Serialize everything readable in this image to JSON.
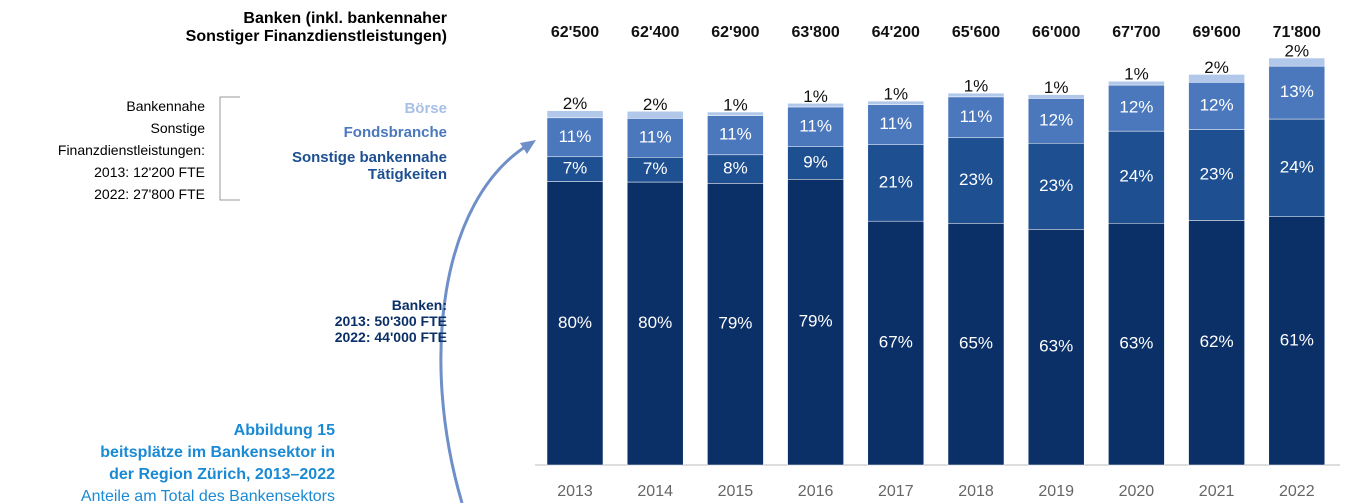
{
  "chart_data": {
    "type": "stacked-bar",
    "title": [
      "Banken (inkl. bankennaher",
      "Sonstiger Finanzdienstleistungen)"
    ],
    "categories": [
      "2013",
      "2014",
      "2015",
      "2016",
      "2017",
      "2018",
      "2019",
      "2020",
      "2021",
      "2022"
    ],
    "totals": {
      "values": [
        62500,
        62400,
        62900,
        63800,
        64200,
        65600,
        66000,
        67700,
        69600,
        71800
      ],
      "value_labels": [
        "62'500",
        "62'400",
        "62'900",
        "63'800",
        "64'200",
        "65'600",
        "66'000",
        "67'700",
        "69'600",
        "71'800"
      ]
    },
    "series": [
      {
        "name": "Banken",
        "color": "#0b3068",
        "values": [
          80,
          80,
          79,
          79,
          67,
          65,
          63,
          63,
          62,
          61
        ],
        "value_labels": [
          "80%",
          "80%",
          "79%",
          "79%",
          "67%",
          "65%",
          "63%",
          "63%",
          "62%",
          "61%"
        ]
      },
      {
        "name": "Sonstige bankennahe Tätigkeiten",
        "color": "#1d4f91",
        "values": [
          7,
          7,
          8,
          9,
          21,
          23,
          23,
          24,
          23,
          24
        ],
        "value_labels": [
          "7%",
          "7%",
          "8%",
          "9%",
          "21%",
          "23%",
          "23%",
          "24%",
          "23%",
          "24%"
        ]
      },
      {
        "name": "Fondsbranche",
        "color": "#4b78bd",
        "values": [
          11,
          11,
          11,
          11,
          11,
          11,
          12,
          12,
          12,
          13
        ],
        "value_labels": [
          "11%",
          "11%",
          "11%",
          "11%",
          "11%",
          "11%",
          "12%",
          "12%",
          "12%",
          "13%"
        ]
      },
      {
        "name": "Börse",
        "color": "#b1c8ea",
        "values": [
          2,
          2,
          1,
          1,
          1,
          1,
          1,
          1,
          2,
          2
        ],
        "value_labels": [
          "2%",
          "2%",
          "1%",
          "1%",
          "1%",
          "1%",
          "1%",
          "1%",
          "2%",
          "2%"
        ]
      }
    ],
    "annotations": {
      "bankennahe": [
        "Bankennahe",
        "Sonstige",
        "Finanzdienstleistungen:",
        "2013: 12'200 FTE",
        "2022: 27'800 FTE"
      ],
      "banken": [
        "Banken:",
        "2013: 50'300 FTE",
        "2022: 44'000 FTE"
      ]
    },
    "caption": [
      "Abbildung 15",
      "beitsplätze im Bankensektor in",
      "der Region Zürich, 2013–2022",
      "Anteile am Total des Bankensektors"
    ]
  }
}
